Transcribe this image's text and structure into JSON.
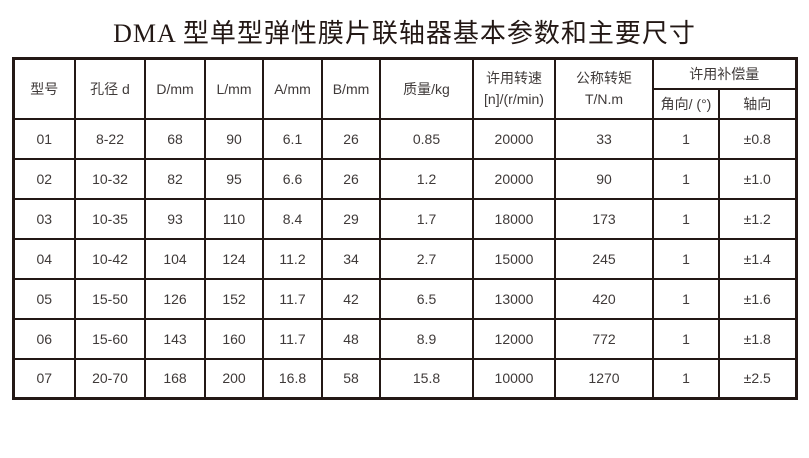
{
  "title": "DMA 型单型弹性膜片联轴器基本参数和主要尺寸",
  "colors": {
    "background": "#ffffff",
    "border": "#231815",
    "text": "#3f3a39",
    "title": "#231815"
  },
  "table": {
    "headers": {
      "model": "型号",
      "bore": "孔径 d",
      "d": "D/mm",
      "l": "L/mm",
      "a": "A/mm",
      "b": "B/mm",
      "mass": "质量/kg",
      "speed_line1": "许用转速",
      "speed_line2": "[n]/(r/min)",
      "torque_line1": "公称转矩",
      "torque_line2": "T/N.m",
      "compensation": "许用补偿量",
      "angular": "角向/ (°)",
      "axial": "轴向"
    },
    "rows": [
      [
        "01",
        "8-22",
        "68",
        "90",
        "6.1",
        "26",
        "0.85",
        "20000",
        "33",
        "1",
        "±0.8"
      ],
      [
        "02",
        "10-32",
        "82",
        "95",
        "6.6",
        "26",
        "1.2",
        "20000",
        "90",
        "1",
        "±1.0"
      ],
      [
        "03",
        "10-35",
        "93",
        "110",
        "8.4",
        "29",
        "1.7",
        "18000",
        "173",
        "1",
        "±1.2"
      ],
      [
        "04",
        "10-42",
        "104",
        "124",
        "11.2",
        "34",
        "2.7",
        "15000",
        "245",
        "1",
        "±1.4"
      ],
      [
        "05",
        "15-50",
        "126",
        "152",
        "11.7",
        "42",
        "6.5",
        "13000",
        "420",
        "1",
        "±1.6"
      ],
      [
        "06",
        "15-60",
        "143",
        "160",
        "11.7",
        "48",
        "8.9",
        "12000",
        "772",
        "1",
        "±1.8"
      ],
      [
        "07",
        "20-70",
        "168",
        "200",
        "16.8",
        "58",
        "15.8",
        "10000",
        "1270",
        "1",
        "±2.5"
      ]
    ]
  }
}
